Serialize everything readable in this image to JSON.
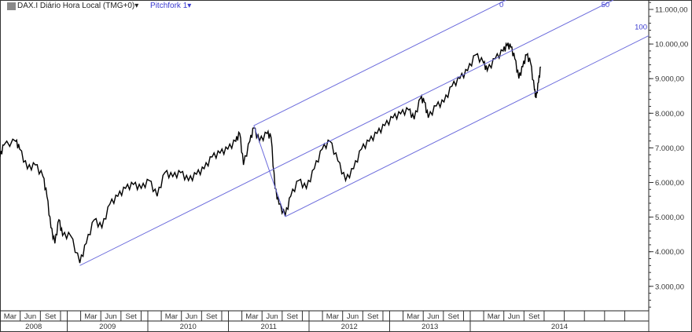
{
  "header": {
    "symbol_label": "DAX.I Diário Hora Local (TMG+0)",
    "indicator_label": "Pitchfork 1",
    "dropdown_icon": "caret-down-icon",
    "logo_icon": "chart-logo-icon"
  },
  "chart_data": {
    "type": "line",
    "title": "",
    "xlabel": "",
    "ylabel": "",
    "ylim": [
      2400,
      11300
    ],
    "xlim": [
      "2008-02-27",
      "2015-03-15"
    ],
    "grid": false,
    "series_color": "#000000",
    "pitchfork_color": "#6b6bdc",
    "y_ticks": [
      3000,
      4000,
      5000,
      6000,
      7000,
      8000,
      9000,
      10000,
      11000
    ],
    "y_tick_labels": [
      "3.000,00",
      "4.000,00",
      "5.000,00",
      "6.000,00",
      "7.000,00",
      "8.000,00",
      "9.000,00",
      "10.000,00",
      "11.000,00"
    ],
    "x_years": [
      "2008",
      "2009",
      "2010",
      "2011",
      "2012",
      "2013",
      "2014"
    ],
    "x_months": [
      "Mar",
      "Jun",
      "Set"
    ],
    "series": [
      {
        "points": [
          [
            "2008-03-01",
            6736
          ],
          [
            "2008-03-19",
            7076
          ],
          [
            "2008-05-12",
            7190
          ],
          [
            "2008-05-30",
            6963
          ],
          [
            "2008-07-04",
            6396
          ],
          [
            "2008-08-09",
            6509
          ],
          [
            "2008-09-13",
            6169
          ],
          [
            "2008-10-01",
            5602
          ],
          [
            "2008-10-19",
            4695
          ],
          [
            "2008-11-06",
            4241
          ],
          [
            "2008-11-24",
            4922
          ],
          [
            "2008-12-11",
            4468
          ],
          [
            "2009-01-16",
            4468
          ],
          [
            "2009-02-27",
            3674
          ],
          [
            "2009-03-28",
            4241
          ],
          [
            "2009-05-03",
            4922
          ],
          [
            "2009-06-07",
            4695
          ],
          [
            "2009-07-13",
            5375
          ],
          [
            "2009-08-18",
            5602
          ],
          [
            "2009-09-22",
            5829
          ],
          [
            "2009-10-28",
            5942
          ],
          [
            "2009-12-02",
            5829
          ],
          [
            "2010-01-07",
            6056
          ],
          [
            "2010-02-12",
            5602
          ],
          [
            "2010-03-19",
            6283
          ],
          [
            "2010-04-24",
            6169
          ],
          [
            "2010-05-30",
            6283
          ],
          [
            "2010-07-04",
            6056
          ],
          [
            "2010-08-09",
            6237
          ],
          [
            "2010-09-13",
            6396
          ],
          [
            "2010-10-19",
            6736
          ],
          [
            "2010-11-24",
            6850
          ],
          [
            "2010-12-29",
            6963
          ],
          [
            "2011-02-03",
            7190
          ],
          [
            "2011-02-21",
            7417
          ],
          [
            "2011-03-10",
            6509
          ],
          [
            "2011-04-08",
            7190
          ],
          [
            "2011-04-26",
            7575
          ],
          [
            "2011-05-21",
            7190
          ],
          [
            "2011-06-25",
            7417
          ],
          [
            "2011-07-13",
            7303
          ],
          [
            "2011-07-31",
            5829
          ],
          [
            "2011-08-18",
            5375
          ],
          [
            "2011-09-15",
            5035
          ],
          [
            "2011-10-10",
            5602
          ],
          [
            "2011-11-15",
            6056
          ],
          [
            "2011-12-20",
            5829
          ],
          [
            "2012-01-25",
            6396
          ],
          [
            "2012-03-01",
            6963
          ],
          [
            "2012-04-05",
            7190
          ],
          [
            "2012-05-11",
            6623
          ],
          [
            "2012-06-15",
            6056
          ],
          [
            "2012-07-21",
            6396
          ],
          [
            "2012-08-26",
            6963
          ],
          [
            "2012-09-30",
            7190
          ],
          [
            "2012-11-05",
            7417
          ],
          [
            "2012-12-10",
            7643
          ],
          [
            "2013-01-16",
            7870
          ],
          [
            "2013-02-20",
            7984
          ],
          [
            "2013-03-28",
            8097
          ],
          [
            "2013-04-22",
            7825
          ],
          [
            "2013-05-21",
            8437
          ],
          [
            "2013-06-07",
            8324
          ],
          [
            "2013-06-25",
            7870
          ],
          [
            "2013-07-31",
            8210
          ],
          [
            "2013-09-04",
            8324
          ],
          [
            "2013-10-10",
            8777
          ],
          [
            "2013-11-15",
            9004
          ],
          [
            "2013-12-20",
            9231
          ],
          [
            "2014-01-25",
            9685
          ],
          [
            "2014-03-02",
            9458
          ],
          [
            "2014-03-19",
            9231
          ],
          [
            "2014-04-24",
            9571
          ],
          [
            "2014-05-30",
            9798
          ],
          [
            "2014-06-17",
            9957
          ],
          [
            "2014-07-04",
            9911
          ],
          [
            "2014-07-22",
            9571
          ],
          [
            "2014-08-09",
            9004
          ],
          [
            "2014-08-27",
            9344
          ],
          [
            "2014-09-13",
            9685
          ],
          [
            "2014-10-01",
            9458
          ],
          [
            "2014-10-19",
            8664
          ],
          [
            "2014-10-26",
            8437
          ],
          [
            "2014-11-06",
            8891
          ],
          [
            "2014-11-16",
            9344
          ]
        ]
      }
    ],
    "pitchfork": {
      "anchors": [
        [
          "2009-02-27",
          3600
        ],
        [
          "2011-04-26",
          7643
        ],
        [
          "2011-09-15",
          5013
        ]
      ],
      "labels": [
        "0",
        "50",
        "100"
      ]
    }
  }
}
